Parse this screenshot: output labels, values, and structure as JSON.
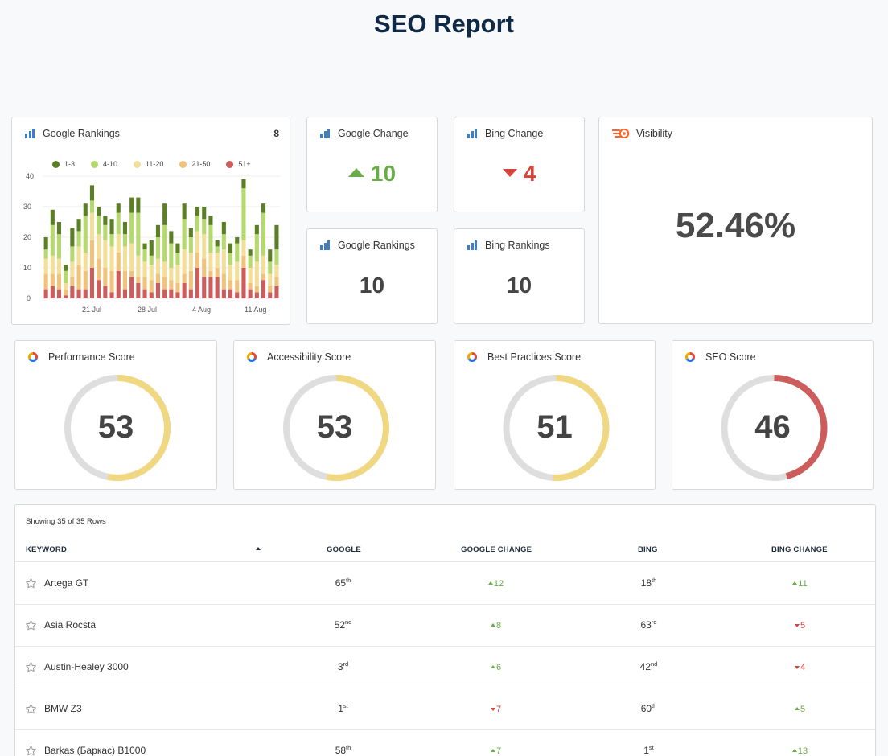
{
  "page": {
    "title": "SEO Report"
  },
  "colors": {
    "up": "#6aac47",
    "down": "#d8443c",
    "gauge_track": "#dedede",
    "gauge_yellow": "#f0d883",
    "gauge_red": "#cd5c5c",
    "title": "#0f2a47"
  },
  "rankings_chart": {
    "header": "Google Rankings",
    "count": "8",
    "legend": [
      {
        "label": "1-3",
        "color": "#5b7f25"
      },
      {
        "label": "4-10",
        "color": "#b5d86f"
      },
      {
        "label": "11-20",
        "color": "#f4df9a"
      },
      {
        "label": "21-50",
        "color": "#f0c27a"
      },
      {
        "label": "51+",
        "color": "#cd5c5c"
      }
    ],
    "y_ticks": [
      "40",
      "30",
      "20",
      "10",
      "0"
    ],
    "x_ticks": [
      "21 Jul",
      "28 Jul",
      "4 Aug",
      "11 Aug"
    ]
  },
  "chart_data": {
    "type": "bar",
    "stacked": true,
    "ylim": [
      0,
      40
    ],
    "y_ticks": [
      0,
      10,
      20,
      30,
      40
    ],
    "x_tick_labels": [
      "21 Jul",
      "28 Jul",
      "4 Aug",
      "11 Aug"
    ],
    "grid": true,
    "legend_position": "top",
    "series": [
      {
        "name": "1-3",
        "color": "#5b7f25",
        "values": [
          4,
          5,
          4,
          2,
          6,
          4,
          4,
          5,
          3,
          3,
          5,
          3,
          4,
          5,
          5,
          2,
          5,
          4,
          7,
          4,
          3,
          5,
          3,
          3,
          4,
          3,
          2,
          4,
          3,
          2,
          3,
          2,
          3,
          3,
          4,
          8
        ]
      },
      {
        "name": "4-10",
        "color": "#b5d86f",
        "values": [
          3,
          10,
          8,
          4,
          5,
          5,
          12,
          4,
          6,
          5,
          4,
          7,
          4,
          10,
          14,
          4,
          3,
          7,
          12,
          8,
          4,
          10,
          5,
          5,
          5,
          9,
          2,
          5,
          4,
          6,
          17,
          4,
          9,
          14,
          4,
          5
        ]
      },
      {
        "name": "11-20",
        "color": "#f4df9a",
        "values": [
          5,
          6,
          5,
          2,
          5,
          6,
          6,
          9,
          8,
          9,
          8,
          6,
          8,
          9,
          7,
          5,
          5,
          5,
          5,
          4,
          6,
          8,
          6,
          7,
          8,
          6,
          5,
          8,
          5,
          6,
          5,
          5,
          8,
          6,
          4,
          4
        ]
      },
      {
        "name": "21-50",
        "color": "#f0c27a",
        "values": [
          5,
          4,
          5,
          2,
          3,
          8,
          6,
          9,
          7,
          6,
          7,
          6,
          6,
          2,
          2,
          4,
          4,
          3,
          4,
          3,
          3,
          3,
          6,
          5,
          6,
          2,
          3,
          5,
          3,
          4,
          4,
          2,
          2,
          2,
          2,
          3
        ]
      },
      {
        "name": "51+",
        "color": "#cd5c5c",
        "values": [
          3,
          4,
          3,
          1,
          4,
          3,
          3,
          10,
          6,
          4,
          2,
          9,
          3,
          7,
          5,
          3,
          2,
          5,
          3,
          3,
          2,
          5,
          3,
          10,
          7,
          7,
          7,
          3,
          3,
          2,
          10,
          3,
          2,
          6,
          2,
          4
        ]
      }
    ]
  },
  "google_change": {
    "title": "Google Change",
    "value": "10",
    "direction": "up"
  },
  "bing_change": {
    "title": "Bing Change",
    "value": "4",
    "direction": "down"
  },
  "google_rankings": {
    "title": "Google Rankings",
    "value": "10"
  },
  "bing_rankings": {
    "title": "Bing Rankings",
    "value": "10"
  },
  "visibility": {
    "title": "Visibility",
    "value": "52.46%"
  },
  "scores": [
    {
      "title": "Performance Score",
      "value": "53",
      "percent": 53,
      "color": "#f0d883"
    },
    {
      "title": "Accessibility Score",
      "value": "53",
      "percent": 53,
      "color": "#f0d883"
    },
    {
      "title": "Best Practices Score",
      "value": "51",
      "percent": 51,
      "color": "#f0d883"
    },
    {
      "title": "SEO Score",
      "value": "46",
      "percent": 46,
      "color": "#cd5c5c"
    }
  ],
  "table": {
    "row_count": "Showing 35 of 35 Rows",
    "headers": {
      "keyword": "KEYWORD",
      "google": "GOOGLE",
      "google_change": "GOOGLE CHANGE",
      "bing": "BING",
      "bing_change": "BING CHANGE"
    },
    "rows": [
      {
        "keyword": "Artega GT",
        "google": "65",
        "google_sup": "th",
        "gchange": "12",
        "gdir": "up",
        "bing": "18",
        "bing_sup": "th",
        "bchange": "11",
        "bdir": "up"
      },
      {
        "keyword": "Asia Rocsta",
        "google": "52",
        "google_sup": "nd",
        "gchange": "8",
        "gdir": "up",
        "bing": "63",
        "bing_sup": "rd",
        "bchange": "5",
        "bdir": "down"
      },
      {
        "keyword": "Austin-Healey 3000",
        "google": "3",
        "google_sup": "rd",
        "gchange": "6",
        "gdir": "up",
        "bing": "42",
        "bing_sup": "nd",
        "bchange": "4",
        "bdir": "down"
      },
      {
        "keyword": "BMW Z3",
        "google": "1",
        "google_sup": "st",
        "gchange": "7",
        "gdir": "down",
        "bing": "60",
        "bing_sup": "th",
        "bchange": "5",
        "bdir": "up"
      },
      {
        "keyword": "Barkas (Баркас) B1000",
        "google": "58",
        "google_sup": "th",
        "gchange": "7",
        "gdir": "up",
        "bing": "1",
        "bing_sup": "st",
        "bchange": "13",
        "bdir": "up"
      }
    ]
  }
}
